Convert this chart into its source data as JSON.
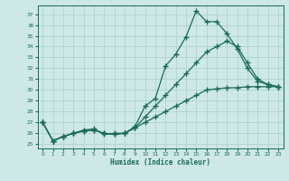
{
  "xlabel": "Humidex (Indice chaleur)",
  "bg_color": "#cde8e5",
  "grid_color": "#aacfca",
  "line_color": "#1a6b5a",
  "x_ticks": [
    0,
    1,
    2,
    3,
    4,
    5,
    6,
    7,
    8,
    9,
    10,
    11,
    12,
    13,
    14,
    15,
    16,
    17,
    18,
    19,
    20,
    21,
    22,
    23
  ],
  "y_ticks": [
    25,
    26,
    27,
    28,
    29,
    30,
    31,
    32,
    33,
    34,
    35,
    36,
    37
  ],
  "ylim": [
    24.6,
    37.8
  ],
  "xlim": [
    -0.5,
    23.5
  ],
  "line1_y": [
    27.0,
    25.3,
    25.7,
    26.0,
    26.3,
    26.4,
    25.9,
    26.0,
    26.0,
    26.6,
    28.5,
    29.2,
    32.2,
    33.3,
    34.9,
    37.3,
    36.3,
    36.3,
    35.2,
    33.8,
    32.0,
    30.8,
    30.5,
    30.3
  ],
  "line2_y": [
    27.0,
    25.3,
    25.7,
    26.0,
    26.2,
    26.3,
    26.0,
    25.9,
    26.0,
    26.5,
    27.5,
    28.5,
    29.5,
    30.5,
    31.5,
    32.5,
    33.5,
    34.0,
    34.5,
    34.0,
    32.5,
    31.0,
    30.5,
    30.3
  ],
  "line3_y": [
    27.0,
    25.3,
    25.7,
    26.0,
    26.2,
    26.3,
    26.0,
    25.9,
    26.0,
    26.5,
    27.0,
    27.5,
    28.0,
    28.5,
    29.0,
    29.5,
    30.0,
    30.1,
    30.2,
    30.2,
    30.3,
    30.3,
    30.3,
    30.3
  ]
}
